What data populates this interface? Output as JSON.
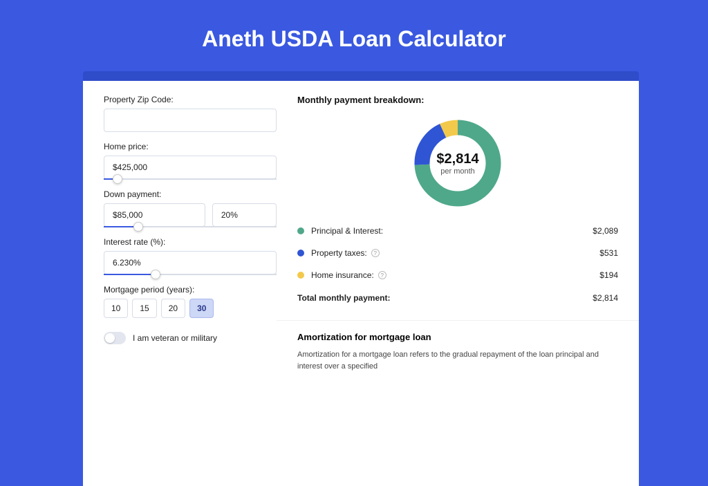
{
  "page": {
    "title": "Aneth USDA Loan Calculator",
    "background_color": "#3a59e0",
    "card_shadow_color": "#2f4cc9"
  },
  "form": {
    "zip": {
      "label": "Property Zip Code:",
      "value": ""
    },
    "home_price": {
      "label": "Home price:",
      "value": "$425,000",
      "slider_pct": 8
    },
    "down_payment": {
      "label": "Down payment:",
      "amount": "$85,000",
      "percent": "20%",
      "slider_pct": 20
    },
    "interest_rate": {
      "label": "Interest rate (%):",
      "value": "6.230%",
      "slider_pct": 30
    },
    "mortgage_period": {
      "label": "Mortgage period (years):",
      "options": [
        "10",
        "15",
        "20",
        "30"
      ],
      "selected": "30"
    },
    "veteran": {
      "label": "I am veteran or military",
      "checked": false
    }
  },
  "breakdown": {
    "title": "Monthly payment breakdown:",
    "donut": {
      "amount": "$2,814",
      "sub": "per month",
      "slices": [
        {
          "key": "principal_interest",
          "value": 2089,
          "color": "#4fa88a"
        },
        {
          "key": "property_taxes",
          "value": 531,
          "color": "#2f55d4"
        },
        {
          "key": "home_insurance",
          "value": 194,
          "color": "#f3c94b"
        }
      ],
      "ring_width": 22
    },
    "items": [
      {
        "label": "Principal & Interest:",
        "value": "$2,089",
        "color": "#4fa88a",
        "help": false
      },
      {
        "label": "Property taxes:",
        "value": "$531",
        "color": "#2f55d4",
        "help": true
      },
      {
        "label": "Home insurance:",
        "value": "$194",
        "color": "#f3c94b",
        "help": true
      }
    ],
    "total": {
      "label": "Total monthly payment:",
      "value": "$2,814"
    }
  },
  "amortization": {
    "title": "Amortization for mortgage loan",
    "body": "Amortization for a mortgage loan refers to the gradual repayment of the loan principal and interest over a specified"
  }
}
